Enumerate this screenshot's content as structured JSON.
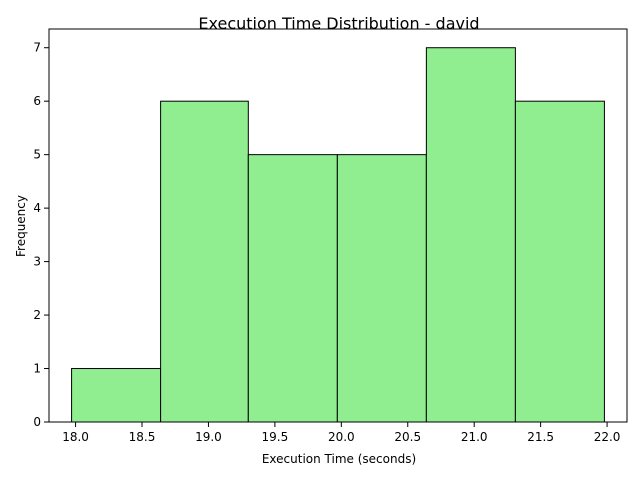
{
  "chart_data": {
    "type": "bar",
    "title": "Execution Time Distribution - david",
    "xlabel": "Execution Time (seconds)",
    "ylabel": "Frequency",
    "xlim": [
      17.8,
      22.15
    ],
    "ylim": [
      0,
      7.35
    ],
    "bar_color": "#90ee90",
    "edge_color": "#000000",
    "bins": [
      {
        "start": 17.97,
        "end": 18.64,
        "count": 1
      },
      {
        "start": 18.64,
        "end": 19.3,
        "count": 6
      },
      {
        "start": 19.3,
        "end": 19.97,
        "count": 5
      },
      {
        "start": 19.97,
        "end": 20.64,
        "count": 5
      },
      {
        "start": 20.64,
        "end": 21.31,
        "count": 7
      },
      {
        "start": 21.31,
        "end": 21.98,
        "count": 6
      }
    ],
    "x_ticks": [
      "18.0",
      "18.5",
      "19.0",
      "19.5",
      "20.0",
      "20.5",
      "21.0",
      "21.5",
      "22.0"
    ],
    "y_ticks": [
      "0",
      "1",
      "2",
      "3",
      "4",
      "5",
      "6",
      "7"
    ],
    "grid": false,
    "legend": "none"
  }
}
